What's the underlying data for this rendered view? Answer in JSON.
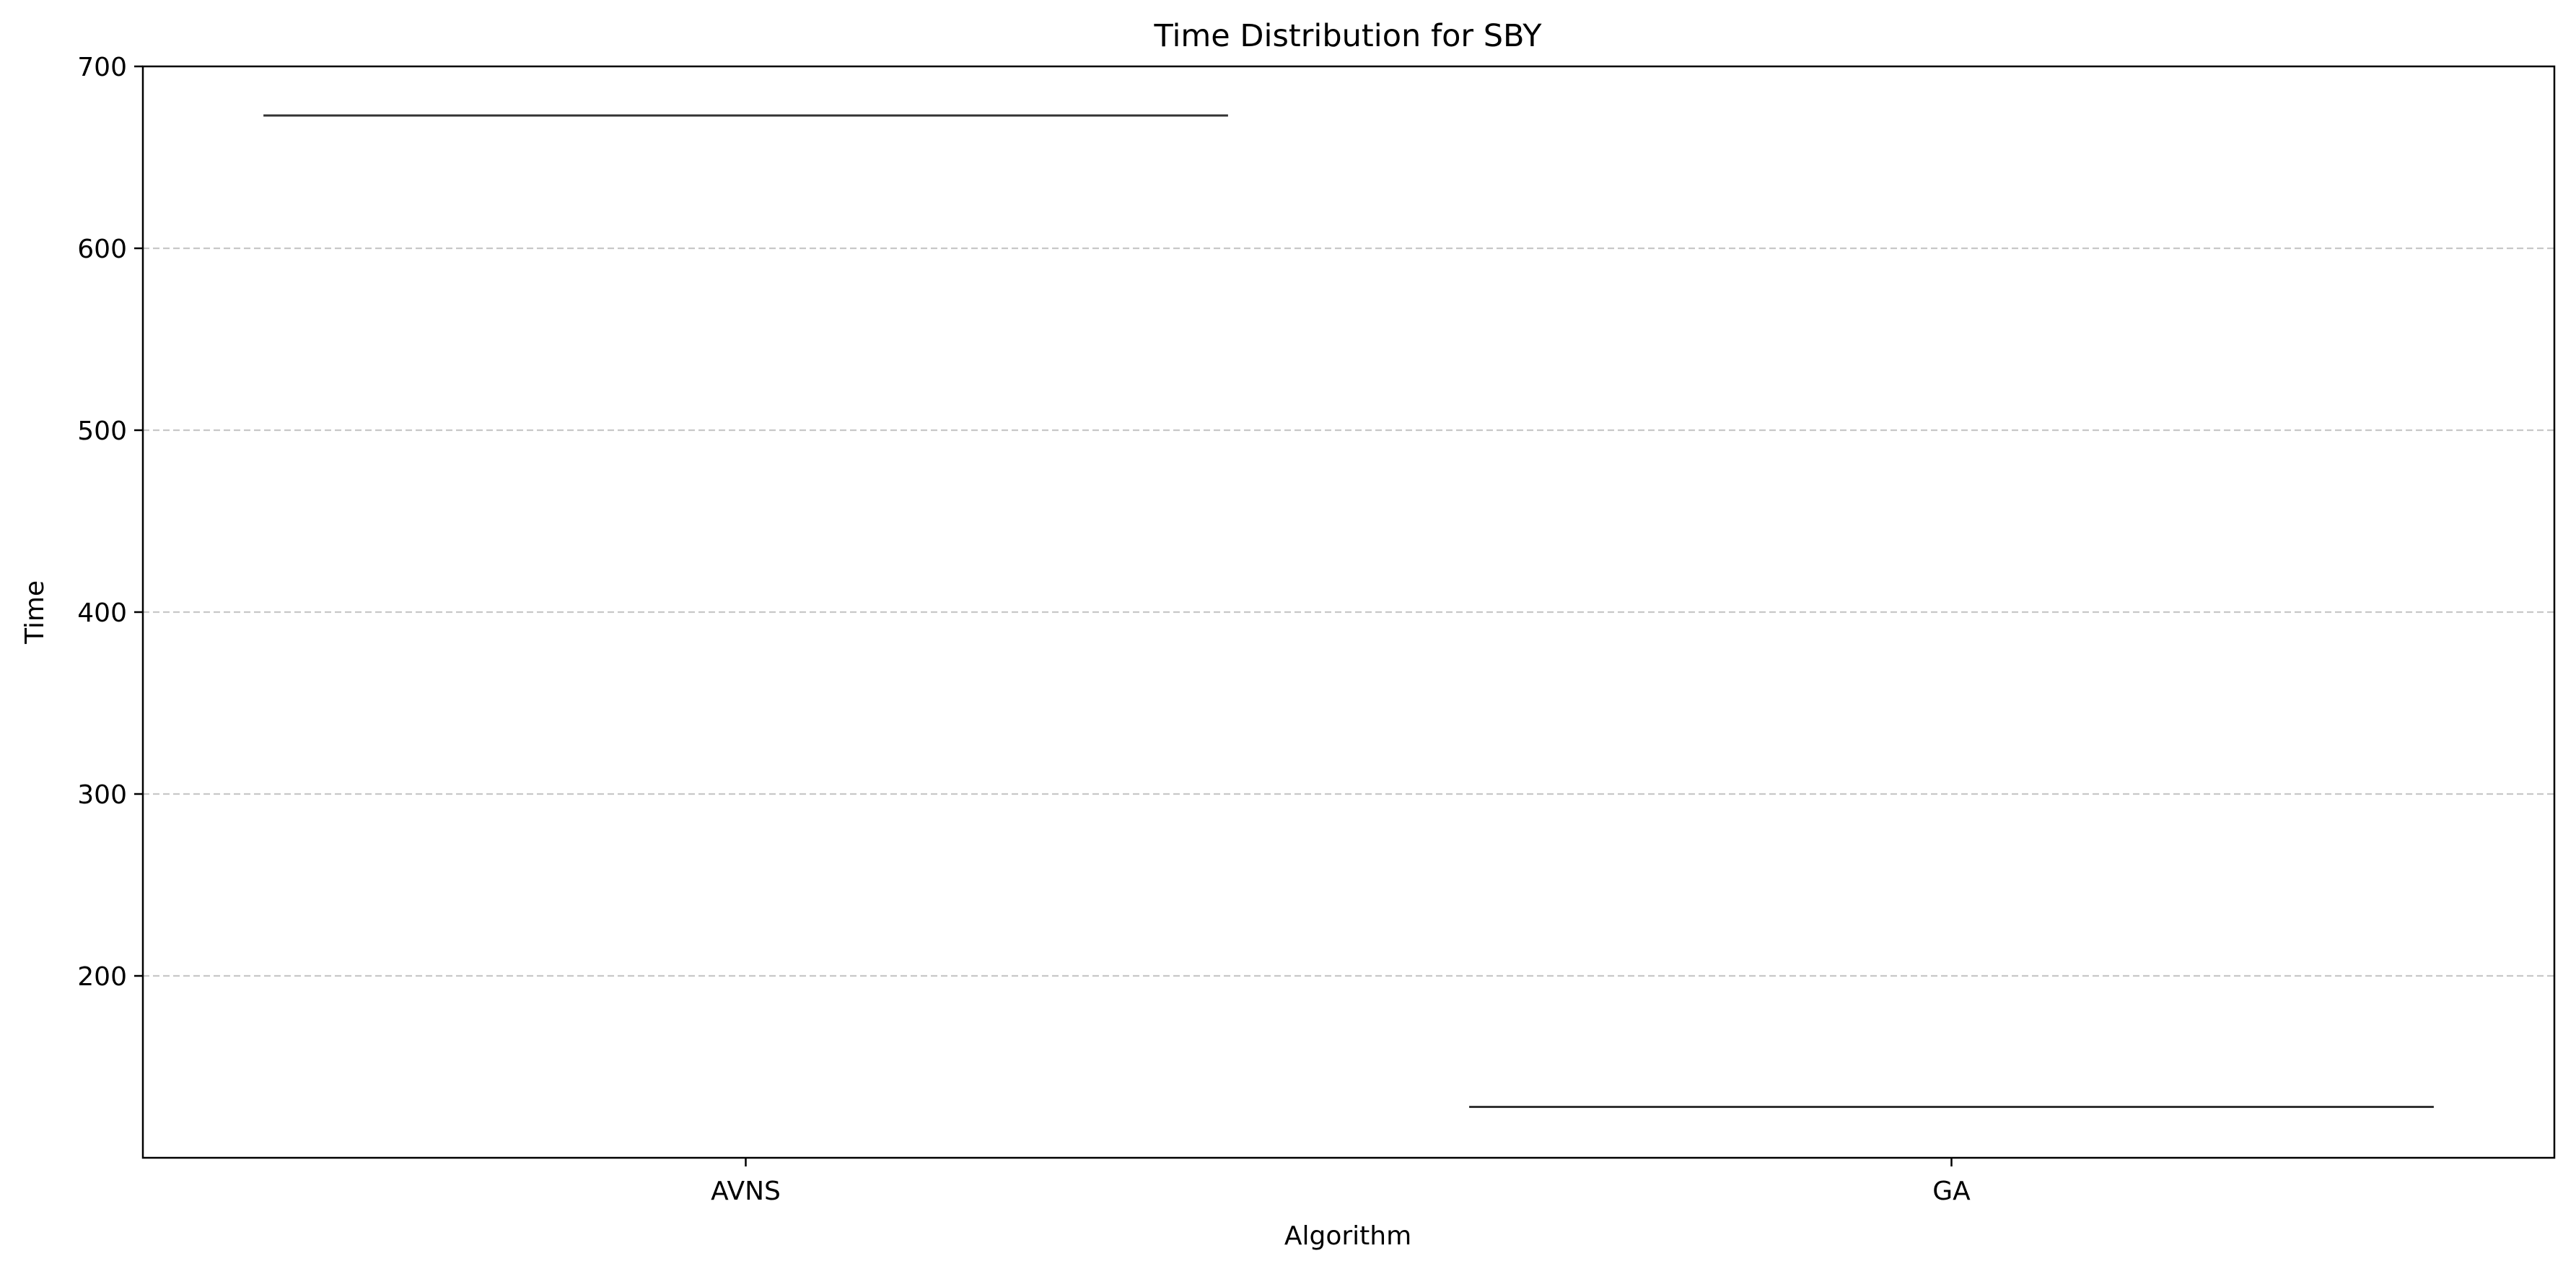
{
  "chart_data": {
    "type": "violin",
    "title": "Time Distribution for SBY",
    "xlabel": "Algorithm",
    "ylabel": "Time",
    "categories": [
      "AVNS",
      "GA"
    ],
    "values": [
      673,
      128
    ],
    "ylim": [
      100,
      700
    ],
    "yticks": [
      200,
      300,
      400,
      500,
      600,
      700
    ],
    "grid": "y, dashed",
    "legend": "none",
    "colors": {
      "line": "#333333",
      "grid": "#c8c8c8",
      "axis": "#000000"
    }
  }
}
